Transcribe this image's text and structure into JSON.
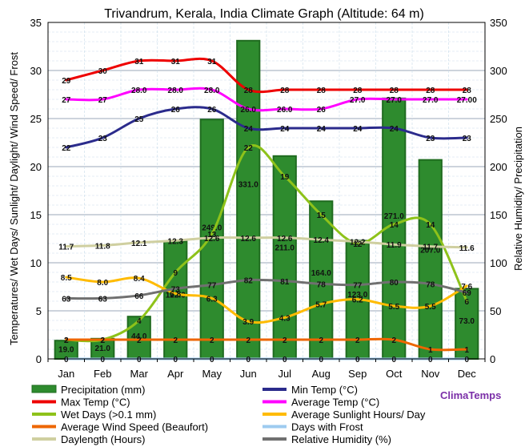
{
  "chart_data": {
    "type": "bar",
    "title": "Trivandrum, Kerala, India Climate Graph (Altitude: 64 m)",
    "ylabel": "Temperatures/ Wet Days/ Sunlight/ Daylight/ Wind Speed/ Frost",
    "y2label": "Relative Humidity/ Precipitation",
    "ylim": [
      0,
      35
    ],
    "y2lim": [
      0,
      350
    ],
    "yticks": [
      "0",
      "5",
      "10",
      "15",
      "20",
      "25",
      "30",
      "35"
    ],
    "y2ticks": [
      "0",
      "50",
      "100",
      "150",
      "200",
      "250",
      "300",
      "350"
    ],
    "categories": [
      "Jan",
      "Feb",
      "Mar",
      "Apr",
      "May",
      "Jun",
      "Jul",
      "Aug",
      "Sep",
      "Oct",
      "Nov",
      "Dec"
    ],
    "bars": {
      "name": "Precipitation (mm)",
      "color": "#2e8b2e",
      "values": [
        19.0,
        21.0,
        44.0,
        122.0,
        249.0,
        331.0,
        211.0,
        164.0,
        123.0,
        271.0,
        207.0,
        73.0
      ],
      "labels": [
        "19.0",
        "21.0",
        "44.0",
        "122.0",
        "249.0",
        "331.0",
        "211.0",
        "164.0",
        "123.0",
        "271.0",
        "207.0",
        "73.0"
      ]
    },
    "series": [
      {
        "name": "Max Temp (°C)",
        "color": "#ee0000",
        "axis": "left",
        "values": [
          29,
          30,
          31,
          31,
          31,
          28,
          28,
          28,
          28,
          28,
          28,
          28
        ],
        "labels": [
          "29",
          "30",
          "31",
          "31",
          "31",
          "28",
          "28",
          "28",
          "28",
          "28",
          "28",
          "28"
        ]
      },
      {
        "name": "Average Temp (°C)",
        "color": "#ff00ff",
        "axis": "left",
        "values": [
          27,
          27,
          28,
          28,
          28,
          26,
          26,
          26,
          27,
          27,
          27,
          27
        ],
        "labels": [
          "27",
          "27",
          "28.0",
          "28.0",
          "28.0",
          "26.0",
          "26.0",
          "26",
          "27.0",
          "27.0",
          "27.0",
          "27.00"
        ]
      },
      {
        "name": "Min Temp (°C)",
        "color": "#2b2b8c",
        "axis": "left",
        "values": [
          22,
          23,
          25,
          26,
          26,
          24,
          24,
          24,
          24,
          24,
          23,
          23
        ],
        "labels": [
          "22",
          "23",
          "25",
          "26",
          "26",
          "24",
          "24",
          "24",
          "24",
          "24",
          "23",
          "23"
        ]
      },
      {
        "name": "Wet Days (>0.1 mm)",
        "color": "#8ec21a",
        "axis": "left",
        "values": [
          2,
          2,
          4,
          9,
          13,
          22,
          19,
          15,
          12,
          14,
          14,
          6
        ],
        "labels": [
          "2",
          "2",
          "4",
          "9",
          "13",
          "22",
          "19",
          "15",
          "12",
          "14",
          "14",
          "6"
        ]
      },
      {
        "name": "Average Sunlight Hours/ Day",
        "color": "#ffbb00",
        "axis": "left",
        "values": [
          8.5,
          8.0,
          8.4,
          6.8,
          6.3,
          3.9,
          4.3,
          5.7,
          6.2,
          5.5,
          5.5,
          7.6
        ],
        "labels": [
          "8.5",
          "8.0",
          "8.4",
          "6.8",
          "6.3",
          "3.9",
          "4.3",
          "5.7",
          "6.2",
          "5.5",
          "5.5",
          "7.6"
        ]
      },
      {
        "name": "Daylength (Hours)",
        "color": "#cfcfa0",
        "axis": "left",
        "values": [
          11.7,
          11.8,
          12.1,
          12.3,
          12.6,
          12.6,
          12.6,
          12.4,
          12.2,
          11.9,
          11.7,
          11.6
        ],
        "labels": [
          "11.7",
          "11.8",
          "12.1",
          "12.3",
          "12.6",
          "12.6",
          "12.6",
          "12.4",
          "12.2",
          "11.9",
          "11.7",
          "11.6"
        ]
      },
      {
        "name": "Relative Humidity (%)",
        "color": "#707070",
        "axis": "right",
        "values": [
          63,
          63,
          66,
          73,
          77,
          82,
          81,
          78,
          77,
          80,
          78,
          69
        ],
        "labels": [
          "63",
          "63",
          "66",
          "73",
          "77",
          "82",
          "81",
          "78",
          "77",
          "80",
          "78",
          "69"
        ]
      },
      {
        "name": "Average Wind Speed (Beaufort)",
        "color": "#ee6600",
        "axis": "left",
        "values": [
          2,
          2,
          2,
          2,
          2,
          2,
          2,
          2,
          2,
          2,
          1,
          1
        ],
        "labels": [
          "2",
          "2",
          "2",
          "2",
          "2",
          "2",
          "2",
          "2",
          "2",
          "2",
          "1",
          "1"
        ]
      },
      {
        "name": "Days with Frost",
        "color": "#9ecbf0",
        "axis": "left",
        "values": [
          0,
          0,
          0,
          0,
          0,
          0,
          0,
          0,
          0,
          0,
          0,
          0
        ],
        "labels": [
          "0",
          "0",
          "0",
          "0",
          "0",
          "0",
          "0",
          "0",
          "0",
          "0",
          "0",
          "0"
        ]
      }
    ],
    "legend": [
      {
        "name": "Precipitation (mm)",
        "color": "#2e8b2e",
        "kind": "bar"
      },
      {
        "name": "Min Temp (°C)",
        "color": "#2b2b8c",
        "kind": "line"
      },
      {
        "name": "Max Temp (°C)",
        "color": "#ee0000",
        "kind": "line"
      },
      {
        "name": "Average Temp (°C)",
        "color": "#ff00ff",
        "kind": "line"
      },
      {
        "name": "Wet Days (>0.1 mm)",
        "color": "#8ec21a",
        "kind": "line"
      },
      {
        "name": "Average Sunlight Hours/ Day",
        "color": "#ffbb00",
        "kind": "line"
      },
      {
        "name": "Average Wind Speed (Beaufort)",
        "color": "#ee6600",
        "kind": "line"
      },
      {
        "name": "Days with Frost",
        "color": "#9ecbf0",
        "kind": "line"
      },
      {
        "name": "Daylength (Hours)",
        "color": "#cfcfa0",
        "kind": "line"
      },
      {
        "name": "Relative Humidity (%)",
        "color": "#707070",
        "kind": "line"
      }
    ],
    "legend_placement": "bottom",
    "grid": true,
    "brand": "ClimaTemps"
  }
}
